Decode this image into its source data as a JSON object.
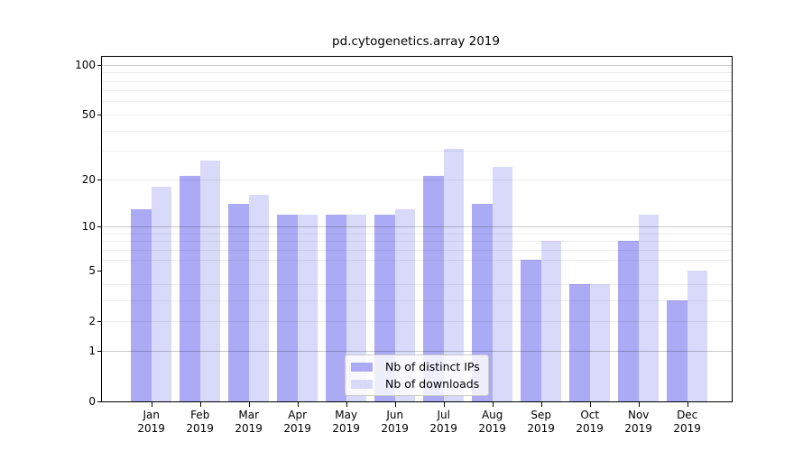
{
  "chart_data": {
    "type": "bar",
    "title": "pd.cytogenetics.array 2019",
    "categories": [
      "Jan",
      "Feb",
      "Mar",
      "Apr",
      "May",
      "Jun",
      "Jul",
      "Aug",
      "Sep",
      "Oct",
      "Nov",
      "Dec"
    ],
    "year_label": "2019",
    "series": [
      {
        "name": "Nb of distinct IPs",
        "color": "#aaaaf5",
        "values": [
          13,
          21,
          14,
          12,
          12,
          12,
          21,
          14,
          6,
          4,
          8,
          3
        ]
      },
      {
        "name": "Nb of downloads",
        "color": "#d9d9fa",
        "values": [
          18,
          26,
          16,
          12,
          12,
          13,
          31,
          24,
          8,
          4,
          12,
          5
        ]
      }
    ],
    "xlabel": "",
    "ylabel": "",
    "yscale": "log1p",
    "ylim": [
      0,
      113
    ],
    "y_major_ticks": [
      0,
      1,
      2,
      5,
      10,
      20,
      50,
      100
    ],
    "y_decade_gridlines": [
      1,
      10,
      100
    ],
    "y_minor_gridlines": [
      2,
      3,
      4,
      6,
      7,
      8,
      9,
      20,
      30,
      40,
      50,
      60,
      70,
      80,
      90
    ],
    "grid": "horizontal",
    "legend_position": "bottom-center"
  },
  "legend": {
    "items": [
      {
        "label": "Nb of distinct IPs",
        "color": "#aaaaf5"
      },
      {
        "label": "Nb of downloads",
        "color": "#d9d9fa"
      }
    ]
  },
  "colors": {
    "background": "#ffffff",
    "axis": "#000000",
    "major_grid": "#c9c9c9",
    "minor_grid": "#ededed",
    "ips_bar": "#aaaaf5",
    "downloads_bar": "#d9d9fa"
  }
}
